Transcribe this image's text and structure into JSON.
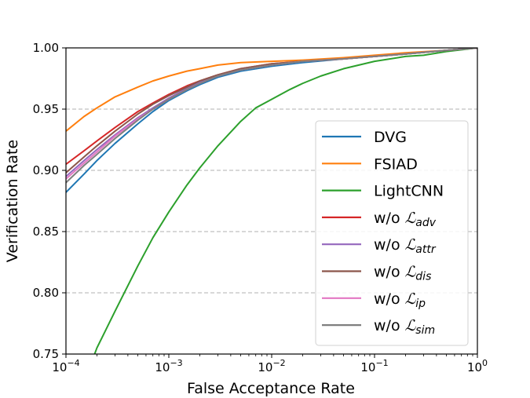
{
  "chart_data": {
    "type": "line",
    "title": "",
    "xlabel": "False Acceptance Rate",
    "ylabel": "Verification Rate",
    "x_scale": "log",
    "xlim": [
      0.0001,
      1
    ],
    "ylim": [
      0.75,
      1.0
    ],
    "x_ticks": [
      {
        "value": 0.0001,
        "base": "10",
        "exp": "−4"
      },
      {
        "value": 0.001,
        "base": "10",
        "exp": "−3"
      },
      {
        "value": 0.01,
        "base": "10",
        "exp": "−2"
      },
      {
        "value": 0.1,
        "base": "10",
        "exp": "−1"
      },
      {
        "value": 1,
        "base": "10",
        "exp": "0"
      }
    ],
    "y_ticks": [
      "0.75",
      "0.80",
      "0.85",
      "0.90",
      "0.95",
      "1.00"
    ],
    "grid": {
      "y_lines": [
        0.8,
        0.85,
        0.9,
        0.95
      ],
      "style": "dashed"
    },
    "legend_position": "right",
    "series": [
      {
        "name": "DVG",
        "color": "#1f77b4",
        "points": [
          [
            0.0001,
            0.882
          ],
          [
            0.00015,
            0.897
          ],
          [
            0.0002,
            0.908
          ],
          [
            0.0003,
            0.922
          ],
          [
            0.0005,
            0.938
          ],
          [
            0.0007,
            0.948
          ],
          [
            0.001,
            0.957
          ],
          [
            0.0015,
            0.965
          ],
          [
            0.002,
            0.97
          ],
          [
            0.003,
            0.976
          ],
          [
            0.005,
            0.981
          ],
          [
            0.01,
            0.985
          ],
          [
            0.02,
            0.988
          ],
          [
            0.05,
            0.991
          ],
          [
            0.1,
            0.993
          ],
          [
            0.2,
            0.995
          ],
          [
            0.5,
            0.998
          ],
          [
            1,
            1.0
          ]
        ]
      },
      {
        "name": "FSIAD",
        "color": "#ff7f0e",
        "points": [
          [
            0.0001,
            0.932
          ],
          [
            0.00015,
            0.944
          ],
          [
            0.0002,
            0.951
          ],
          [
            0.0003,
            0.96
          ],
          [
            0.0005,
            0.968
          ],
          [
            0.0007,
            0.973
          ],
          [
            0.001,
            0.977
          ],
          [
            0.0015,
            0.981
          ],
          [
            0.002,
            0.983
          ],
          [
            0.003,
            0.986
          ],
          [
            0.005,
            0.988
          ],
          [
            0.01,
            0.989
          ],
          [
            0.02,
            0.99
          ],
          [
            0.05,
            0.992
          ],
          [
            0.1,
            0.994
          ],
          [
            0.2,
            0.996
          ],
          [
            0.5,
            0.998
          ],
          [
            1,
            1.0
          ]
        ]
      },
      {
        "name": "LightCNN",
        "color": "#2ca02c",
        "points": [
          [
            0.00019,
            0.75
          ],
          [
            0.0002,
            0.755
          ],
          [
            0.0003,
            0.785
          ],
          [
            0.0005,
            0.822
          ],
          [
            0.0007,
            0.845
          ],
          [
            0.001,
            0.866
          ],
          [
            0.0015,
            0.888
          ],
          [
            0.002,
            0.902
          ],
          [
            0.003,
            0.92
          ],
          [
            0.005,
            0.94
          ],
          [
            0.007,
            0.951
          ],
          [
            0.01,
            0.958
          ],
          [
            0.015,
            0.966
          ],
          [
            0.02,
            0.971
          ],
          [
            0.03,
            0.977
          ],
          [
            0.05,
            0.983
          ],
          [
            0.1,
            0.989
          ],
          [
            0.2,
            0.993
          ],
          [
            0.3,
            0.994
          ],
          [
            0.5,
            0.997
          ],
          [
            0.8,
            0.999
          ],
          [
            1,
            1.0
          ]
        ]
      },
      {
        "name": "w/o ",
        "sub": "adv",
        "color": "#d62728",
        "points": [
          [
            0.0001,
            0.905
          ],
          [
            0.00015,
            0.916
          ],
          [
            0.0002,
            0.924
          ],
          [
            0.0003,
            0.935
          ],
          [
            0.0005,
            0.948
          ],
          [
            0.0007,
            0.955
          ],
          [
            0.001,
            0.962
          ],
          [
            0.0015,
            0.969
          ],
          [
            0.002,
            0.973
          ],
          [
            0.003,
            0.978
          ],
          [
            0.005,
            0.983
          ],
          [
            0.01,
            0.987
          ],
          [
            0.02,
            0.989
          ],
          [
            0.05,
            0.991
          ],
          [
            0.1,
            0.993
          ],
          [
            0.2,
            0.995
          ],
          [
            0.5,
            0.998
          ],
          [
            1,
            1.0
          ]
        ]
      },
      {
        "name": "w/o ",
        "sub": "attr",
        "color": "#9467bd",
        "points": [
          [
            0.0001,
            0.895
          ],
          [
            0.00015,
            0.908
          ],
          [
            0.0002,
            0.917
          ],
          [
            0.0003,
            0.929
          ],
          [
            0.0005,
            0.943
          ],
          [
            0.0007,
            0.951
          ],
          [
            0.001,
            0.959
          ],
          [
            0.0015,
            0.967
          ],
          [
            0.002,
            0.972
          ],
          [
            0.003,
            0.977
          ],
          [
            0.005,
            0.982
          ],
          [
            0.01,
            0.986
          ],
          [
            0.02,
            0.989
          ],
          [
            0.05,
            0.991
          ],
          [
            0.1,
            0.993
          ],
          [
            0.2,
            0.995
          ],
          [
            0.5,
            0.998
          ],
          [
            1,
            1.0
          ]
        ]
      },
      {
        "name": "w/o ",
        "sub": "dis",
        "color": "#8c564b",
        "points": [
          [
            0.0001,
            0.898
          ],
          [
            0.00015,
            0.911
          ],
          [
            0.0002,
            0.92
          ],
          [
            0.0003,
            0.932
          ],
          [
            0.0005,
            0.946
          ],
          [
            0.0007,
            0.954
          ],
          [
            0.001,
            0.961
          ],
          [
            0.0015,
            0.968
          ],
          [
            0.002,
            0.973
          ],
          [
            0.003,
            0.978
          ],
          [
            0.005,
            0.983
          ],
          [
            0.01,
            0.987
          ],
          [
            0.02,
            0.989
          ],
          [
            0.05,
            0.991
          ],
          [
            0.1,
            0.993
          ],
          [
            0.2,
            0.995
          ],
          [
            0.5,
            0.998
          ],
          [
            1,
            1.0
          ]
        ]
      },
      {
        "name": "w/o ",
        "sub": "ip",
        "color": "#e377c2",
        "points": [
          [
            0.0001,
            0.893
          ],
          [
            0.00015,
            0.906
          ],
          [
            0.0002,
            0.915
          ],
          [
            0.0003,
            0.928
          ],
          [
            0.0005,
            0.942
          ],
          [
            0.0007,
            0.95
          ],
          [
            0.001,
            0.958
          ],
          [
            0.0015,
            0.966
          ],
          [
            0.002,
            0.971
          ],
          [
            0.003,
            0.977
          ],
          [
            0.005,
            0.982
          ],
          [
            0.01,
            0.986
          ],
          [
            0.02,
            0.989
          ],
          [
            0.05,
            0.991
          ],
          [
            0.1,
            0.993
          ],
          [
            0.2,
            0.995
          ],
          [
            0.5,
            0.998
          ],
          [
            1,
            1.0
          ]
        ]
      },
      {
        "name": "w/o ",
        "sub": "sim",
        "color": "#7f7f7f",
        "points": [
          [
            0.0001,
            0.89
          ],
          [
            0.00015,
            0.904
          ],
          [
            0.0002,
            0.913
          ],
          [
            0.0003,
            0.926
          ],
          [
            0.0005,
            0.941
          ],
          [
            0.0007,
            0.95
          ],
          [
            0.001,
            0.958
          ],
          [
            0.0015,
            0.966
          ],
          [
            0.002,
            0.971
          ],
          [
            0.003,
            0.977
          ],
          [
            0.005,
            0.982
          ],
          [
            0.01,
            0.986
          ],
          [
            0.02,
            0.989
          ],
          [
            0.05,
            0.991
          ],
          [
            0.1,
            0.993
          ],
          [
            0.2,
            0.995
          ],
          [
            0.5,
            0.998
          ],
          [
            1,
            1.0
          ]
        ]
      }
    ]
  }
}
